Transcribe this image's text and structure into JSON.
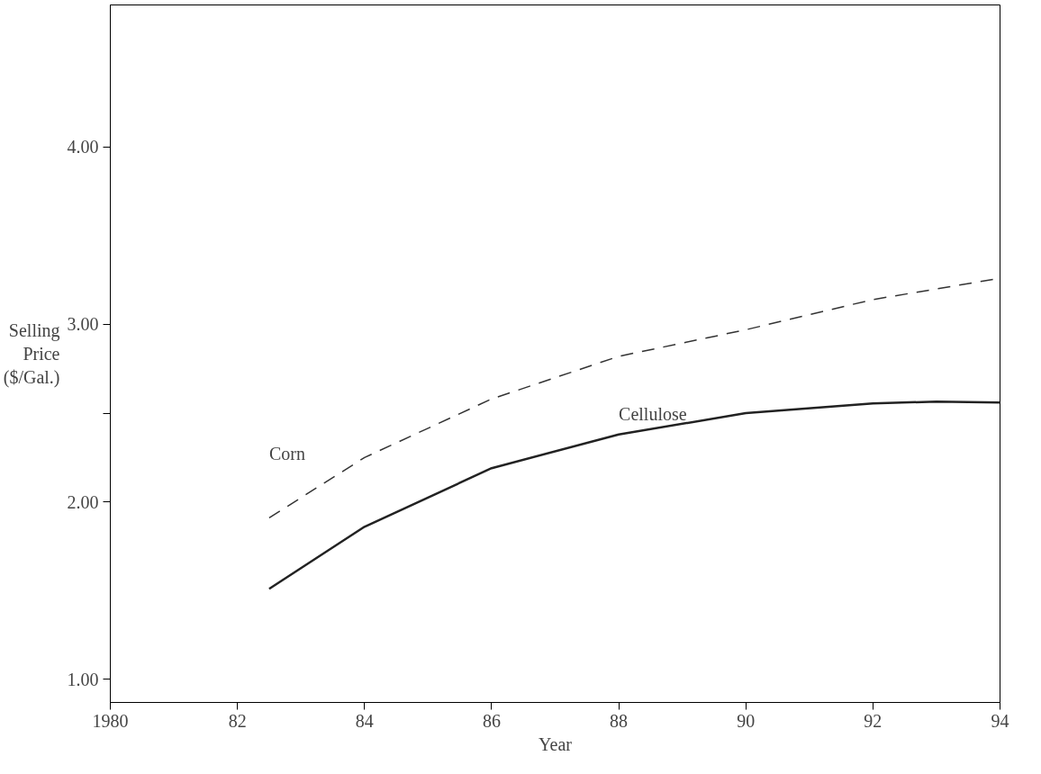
{
  "chart_data": {
    "type": "line",
    "xlabel": "Year",
    "ylabel": "Selling Price ($/Gal.)",
    "xlim": [
      1980,
      1994
    ],
    "xticks": [
      1980,
      {
        "value": 1982,
        "label": "82"
      },
      {
        "value": 1984,
        "label": "84"
      },
      {
        "value": 1986,
        "label": "86"
      },
      {
        "value": 1988,
        "label": "88"
      },
      {
        "value": 1990,
        "label": "90"
      },
      {
        "value": 1992,
        "label": "92"
      },
      {
        "value": 1994,
        "label": "94"
      }
    ],
    "ylim": [
      0.87,
      4.8
    ],
    "yticks": [
      {
        "value": 1,
        "label": "1.00"
      },
      {
        "value": 2,
        "label": "2.00"
      },
      {
        "value": 2.5,
        "label": null
      },
      {
        "value": 3,
        "label": "3.00"
      },
      {
        "value": 4,
        "label": "4.00"
      }
    ],
    "x": [
      1982.5,
      1984,
      1986,
      1988,
      1990,
      1992,
      1993,
      1994
    ],
    "series": [
      {
        "name": "Corn",
        "color": "#333333",
        "line_style": "dashed",
        "values": [
          1.91,
          2.25,
          2.58,
          2.82,
          2.97,
          3.14,
          3.2,
          3.26
        ]
      },
      {
        "name": "Cellulose",
        "color": "#222222",
        "line_style": "solid",
        "values": [
          1.51,
          1.86,
          2.19,
          2.38,
          2.5,
          2.555,
          2.565,
          2.56
        ]
      }
    ],
    "grid": false,
    "marker": "none"
  }
}
